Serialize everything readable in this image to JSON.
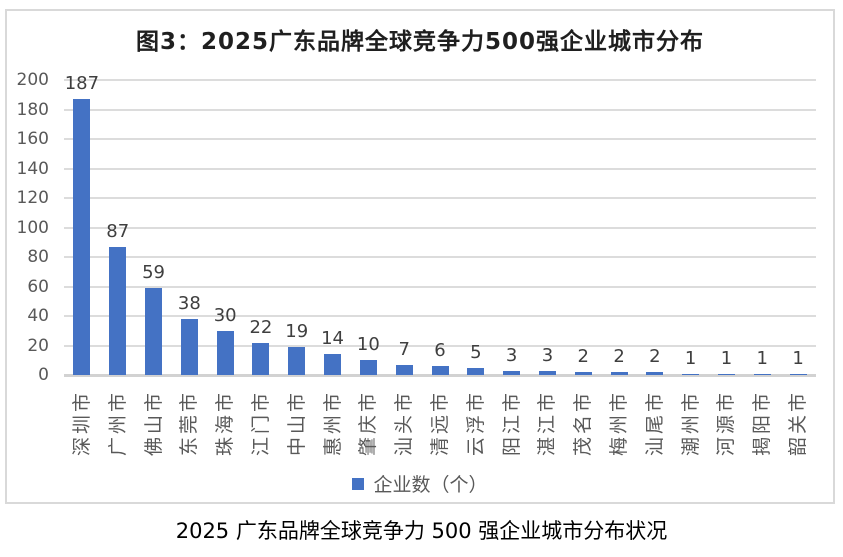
{
  "chart": {
    "title": "图3：2025广东品牌全球竞争力500强企业城市分布",
    "legend_label": "企业数（个）",
    "caption": "2025 广东品牌全球竞争力 500 强企业城市分布状况"
  },
  "colors": {
    "bar": "#4472c4",
    "gridline": "#dcdcdc",
    "axis_line": "#d2d2d2",
    "axis_text": "#595959",
    "value_text": "#3f3f3f",
    "box_border": "#d9d9d9"
  },
  "chart_data": {
    "type": "bar",
    "title": "图3：2025广东品牌全球竞争力500强企业城市分布",
    "categories": [
      "深圳市",
      "广州市",
      "佛山市",
      "东莞市",
      "珠海市",
      "江门市",
      "中山市",
      "惠州市",
      "肇庆市",
      "汕头市",
      "清远市",
      "云浮市",
      "阳江市",
      "湛江市",
      "茂名市",
      "梅州市",
      "汕尾市",
      "潮州市",
      "河源市",
      "揭阳市",
      "韶关市"
    ],
    "values": [
      187,
      87,
      59,
      38,
      30,
      22,
      19,
      14,
      10,
      7,
      6,
      5,
      3,
      3,
      2,
      2,
      2,
      1,
      1,
      1,
      1
    ],
    "data_labels": [
      187,
      87,
      59,
      38,
      30,
      22,
      19,
      14,
      10,
      7,
      6,
      5,
      3,
      3,
      2,
      2,
      2,
      1,
      1,
      1,
      1
    ],
    "xlabel": "",
    "ylabel": "",
    "ylim": [
      0,
      200
    ],
    "yticks": [
      0,
      20,
      40,
      60,
      80,
      100,
      120,
      140,
      160,
      180,
      200
    ],
    "grid": true,
    "legend": [
      "企业数（个）"
    ],
    "legend_position": "bottom",
    "x_label_rotation": -90,
    "caption": "2025 广东品牌全球竞争力 500 强企业城市分布状况"
  }
}
